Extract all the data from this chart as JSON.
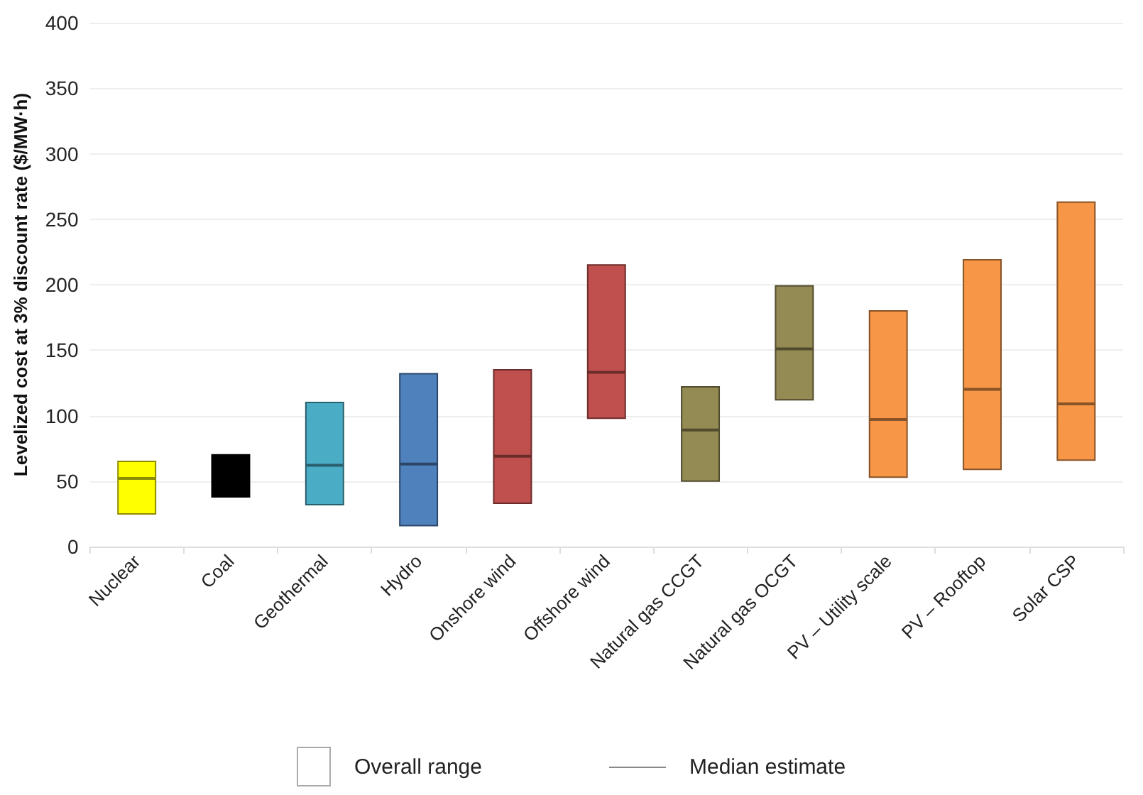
{
  "chart_data": {
    "type": "box",
    "ylabel": "Levelized cost at 3% discount rate ($/MW·h)",
    "categories": [
      "Nuclear",
      "Coal",
      "Geothermal",
      "Hydro",
      "Onshore wind",
      "Offshore wind",
      "Natural gas CCGT",
      "Natural gas OCGT",
      "PV – Utility scale",
      "PV – Rooftop",
      "Solar CSP"
    ],
    "boxes": [
      {
        "low": 25,
        "q1": 25,
        "median": 52,
        "q3": 65,
        "high": 65
      },
      {
        "low": 38,
        "q1": 38,
        "median": null,
        "q3": 70,
        "high": 70
      },
      {
        "low": 32,
        "q1": 32,
        "median": 62,
        "q3": 110,
        "high": 110
      },
      {
        "low": 16,
        "q1": 16,
        "median": 63,
        "q3": 132,
        "high": 132
      },
      {
        "low": 33,
        "q1": 33,
        "median": 69,
        "q3": 135,
        "high": 135
      },
      {
        "low": 98,
        "q1": 98,
        "median": 133,
        "q3": 215,
        "high": 215
      },
      {
        "low": 50,
        "q1": 50,
        "median": 89,
        "q3": 122,
        "high": 122
      },
      {
        "low": 112,
        "q1": 112,
        "median": 151,
        "q3": 199,
        "high": 199
      },
      {
        "low": 53,
        "q1": 53,
        "median": 97,
        "q3": 180,
        "high": 180
      },
      {
        "low": 59,
        "q1": 59,
        "median": 120,
        "q3": 219,
        "high": 219
      },
      {
        "low": 66,
        "q1": 66,
        "median": 109,
        "q3": 263,
        "high": 263
      }
    ],
    "colors": [
      "#ffff00",
      "#000000",
      "#4bacc6",
      "#4f81bd",
      "#c0504d",
      "#c0504d",
      "#948a54",
      "#948a54",
      "#f79646",
      "#f79646",
      "#f79646"
    ],
    "ylim": [
      0,
      400
    ],
    "yticks": [
      0,
      50,
      100,
      150,
      200,
      250,
      300,
      350,
      400
    ],
    "grid": "y",
    "annotations": [
      "Overall range",
      "Median estimate"
    ]
  }
}
